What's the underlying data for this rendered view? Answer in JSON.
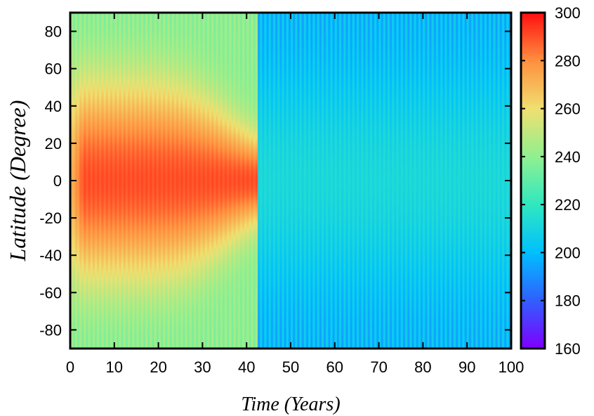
{
  "chart_data": {
    "type": "heatmap",
    "title": "",
    "xlabel": "Time (Years)",
    "ylabel": "Latitude (Degree)",
    "xlim": [
      0,
      100
    ],
    "ylim": [
      -90,
      90
    ],
    "x_ticks": [
      0,
      10,
      20,
      30,
      40,
      50,
      60,
      70,
      80,
      90,
      100
    ],
    "y_ticks": [
      -80,
      -60,
      -40,
      -20,
      0,
      20,
      40,
      60,
      80
    ],
    "colorbar": {
      "range": [
        160,
        300
      ],
      "ticks": [
        160,
        180,
        200,
        220,
        240,
        260,
        280,
        300
      ],
      "colormap": "rainbow",
      "colormap_stops": [
        "#7f00ff",
        "#3060ff",
        "#00c0ff",
        "#30e8c0",
        "#90f090",
        "#f0e070",
        "#ff9040",
        "#ff1010"
      ]
    },
    "grid": false,
    "transition_time": 42.5,
    "phase_warm": {
      "time_range": [
        0,
        42.5
      ],
      "equator_temperature": 290,
      "pole_temperature": 240,
      "seasonal_amplitude": 4
    },
    "phase_cold": {
      "time_range": [
        42.5,
        100
      ],
      "equator_temperature": 212,
      "pole_temperature": 200,
      "seasonal_amplitude": 6
    },
    "seasonal_period_years": 1
  }
}
